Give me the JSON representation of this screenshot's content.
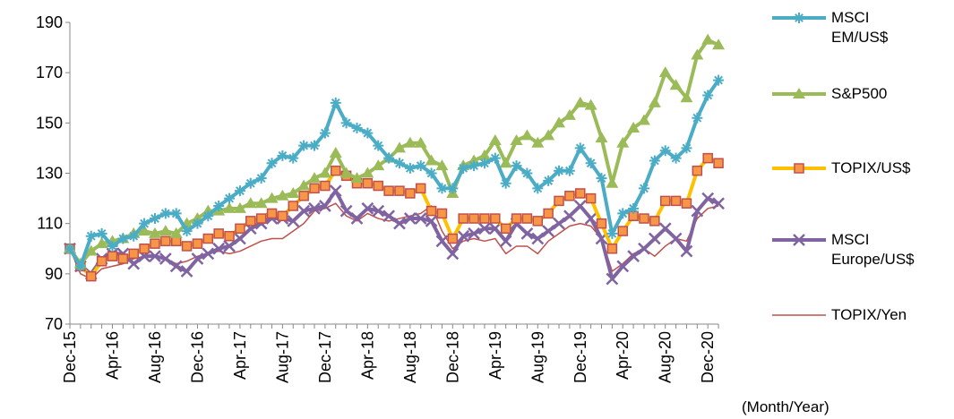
{
  "chart_data": {
    "type": "line",
    "x_label": "(Month/Year)",
    "categories": [
      "Dec-15",
      null,
      null,
      null,
      "Apr-16",
      null,
      null,
      null,
      "Aug-16",
      null,
      null,
      null,
      "Dec-16",
      null,
      null,
      null,
      "Apr-17",
      null,
      null,
      null,
      "Aug-17",
      null,
      null,
      null,
      "Dec-17",
      null,
      null,
      null,
      "Apr-18",
      null,
      null,
      null,
      "Aug-18",
      null,
      null,
      null,
      "Dec-18",
      null,
      null,
      null,
      "Apr-19",
      null,
      null,
      null,
      "Aug-19",
      null,
      null,
      null,
      "Dec-19",
      null,
      null,
      null,
      "Apr-20",
      null,
      null,
      null,
      "Aug-20",
      null,
      null,
      null,
      "Dec-20",
      null
    ],
    "ylim": [
      70,
      190
    ],
    "yticks": [
      70,
      90,
      110,
      130,
      150,
      170,
      190
    ],
    "series": [
      {
        "name": "MSCI EM/US$",
        "color": "#4bacc6",
        "marker": "asterisk",
        "values": [
          100,
          93,
          105,
          106,
          101,
          104,
          105,
          110,
          112,
          114,
          114,
          107,
          110,
          113,
          117,
          120,
          123,
          126,
          128,
          134,
          137,
          136,
          141,
          141,
          146,
          158,
          150,
          148,
          146,
          141,
          136,
          134,
          132,
          133,
          130,
          124,
          124,
          132,
          133,
          134,
          136,
          126,
          133,
          130,
          124,
          127,
          131,
          131,
          140,
          134,
          128,
          106,
          114,
          116,
          124,
          135,
          139,
          136,
          140,
          152,
          161,
          167
        ]
      },
      {
        "name": "S&P500",
        "color": "#9bbb59",
        "marker": "triangle",
        "values": [
          100,
          94,
          99,
          102,
          103,
          104,
          106,
          107,
          106,
          107,
          106,
          110,
          112,
          115,
          115,
          116,
          116,
          118,
          118,
          120,
          121,
          122,
          125,
          128,
          130,
          138,
          130,
          128,
          130,
          133,
          136,
          140,
          142,
          142,
          135,
          133,
          122,
          133,
          135,
          137,
          143,
          134,
          143,
          145,
          142,
          145,
          150,
          153,
          158,
          157,
          144,
          126,
          142,
          148,
          151,
          158,
          170,
          165,
          160,
          177,
          183,
          181
        ]
      },
      {
        "name": "TOPIX/US$",
        "color": "#ffc000",
        "marker": "square",
        "values": [
          100,
          93,
          89,
          95,
          97,
          96,
          98,
          100,
          102,
          103,
          103,
          101,
          102,
          104,
          106,
          105,
          108,
          111,
          112,
          114,
          113,
          117,
          121,
          124,
          125,
          131,
          129,
          126,
          126,
          125,
          123,
          123,
          122,
          124,
          115,
          114,
          104,
          112,
          112,
          112,
          112,
          108,
          112,
          112,
          111,
          114,
          119,
          121,
          122,
          120,
          110,
          100,
          107,
          113,
          112,
          111,
          119,
          119,
          118,
          131,
          136,
          134
        ]
      },
      {
        "name": "MSCI Europe/US$",
        "color": "#8064a2",
        "marker": "x",
        "values": [
          100,
          93,
          90,
          96,
          98,
          98,
          94,
          97,
          97,
          96,
          93,
          91,
          96,
          98,
          100,
          101,
          104,
          108,
          110,
          112,
          112,
          111,
          115,
          116,
          117,
          123,
          115,
          112,
          116,
          115,
          113,
          110,
          112,
          112,
          111,
          103,
          98,
          105,
          106,
          108,
          108,
          103,
          110,
          106,
          104,
          107,
          110,
          113,
          117,
          112,
          104,
          88,
          93,
          97,
          100,
          104,
          108,
          104,
          99,
          115,
          120,
          118
        ]
      },
      {
        "name": "TOPIX/Yen",
        "color": "#c0504d",
        "marker": "none",
        "values": [
          100,
          90,
          88,
          92,
          93,
          94,
          96,
          97,
          97,
          96,
          94,
          95,
          97,
          98,
          99,
          98,
          99,
          101,
          103,
          104,
          104,
          107,
          110,
          115,
          116,
          118,
          113,
          111,
          114,
          112,
          111,
          112,
          113,
          114,
          117,
          107,
          100,
          103,
          104,
          103,
          104,
          98,
          101,
          101,
          98,
          103,
          106,
          109,
          110,
          109,
          104,
          91,
          94,
          98,
          100,
          97,
          101,
          104,
          103,
          112,
          116,
          117
        ]
      }
    ]
  }
}
